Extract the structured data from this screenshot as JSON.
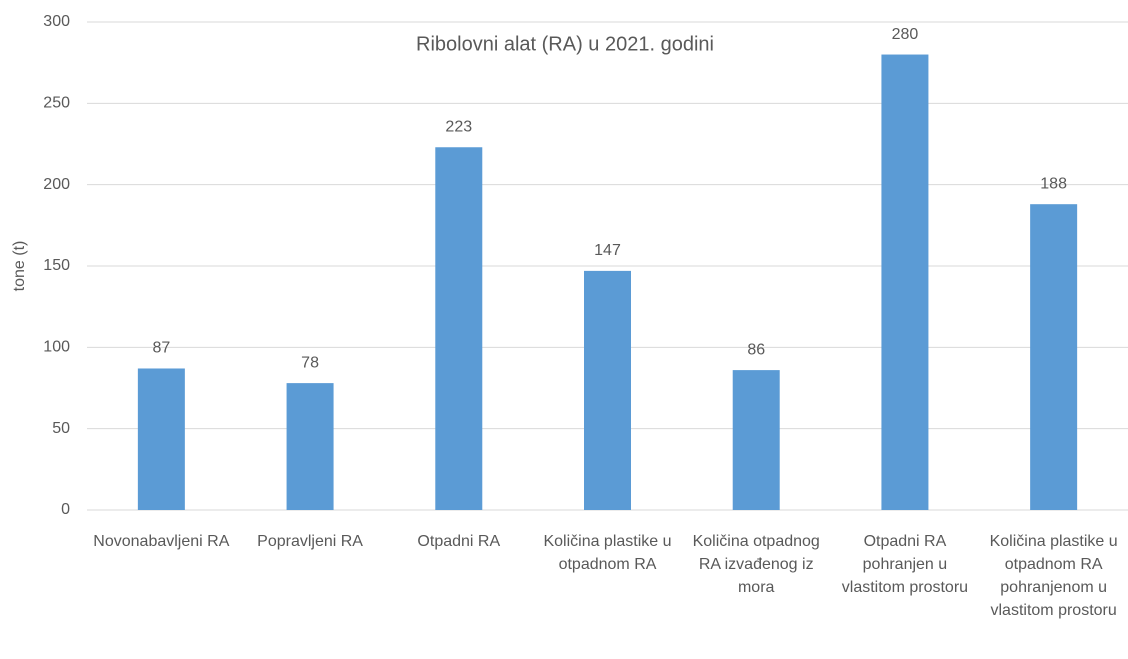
{
  "chart_data": {
    "type": "bar",
    "title": "Ribolovni alat (RA) u 2021. godini",
    "ylabel": "tone (t)",
    "categories": [
      "Novonabavljeni RA",
      "Popravljeni RA",
      "Otpadni RA",
      "Količina plastike u otpadnom RA",
      "Količina otpadnog RA izvađenog iz mora",
      "Otpadni RA pohranjen u vlastitom prostoru",
      "Količina plastike u otpadnom RA pohranjenom u vlastitom prostoru"
    ],
    "values": [
      87,
      78,
      223,
      147,
      86,
      280,
      188
    ],
    "color": "#5b9bd5",
    "ylim": [
      0,
      300
    ],
    "yticks": [
      0,
      50,
      100,
      150,
      200,
      250,
      300
    ],
    "grid": true
  }
}
